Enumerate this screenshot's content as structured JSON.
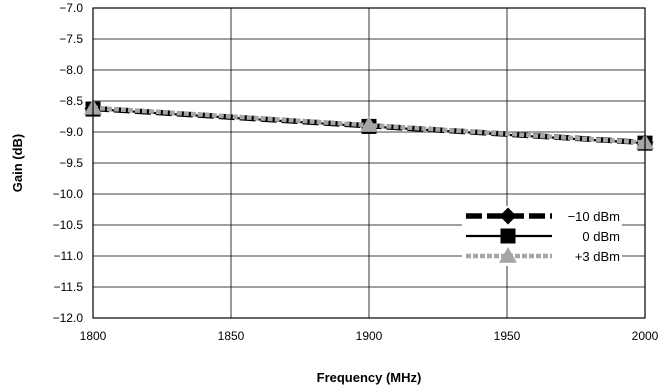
{
  "chart_data": {
    "type": "line",
    "title": "",
    "xlabel": "Frequency (MHz)",
    "ylabel": "Gain (dB)",
    "xlim": [
      1800,
      2000
    ],
    "ylim": [
      -12.0,
      -7.0
    ],
    "x_ticks": [
      "1800",
      "1850",
      "1900",
      "1950",
      "2000"
    ],
    "y_ticks": [
      "−7.0",
      "−7.5",
      "−8.0",
      "−8.5",
      "−9.0",
      "−9.5",
      "−10.0",
      "−10.5",
      "−11.0",
      "−11.5",
      "−12.0"
    ],
    "grid": true,
    "legend_position": "bottom-right",
    "series": [
      {
        "name": "−10 dBm",
        "color": "#000000",
        "line_style": "dashed",
        "marker": "diamond",
        "x": [
          1800,
          1900,
          2000
        ],
        "y": [
          -8.62,
          -8.9,
          -9.17
        ]
      },
      {
        "name": "0 dBm",
        "color": "#000000",
        "line_style": "solid",
        "marker": "square",
        "x": [
          1800,
          1900,
          2000
        ],
        "y": [
          -8.63,
          -8.91,
          -9.18
        ]
      },
      {
        "name": "+3 dBm",
        "color": "#a6a6a6",
        "line_style": "dashed",
        "marker": "triangle",
        "x": [
          1800,
          1900,
          2000
        ],
        "y": [
          -8.61,
          -8.89,
          -9.17
        ]
      }
    ]
  }
}
